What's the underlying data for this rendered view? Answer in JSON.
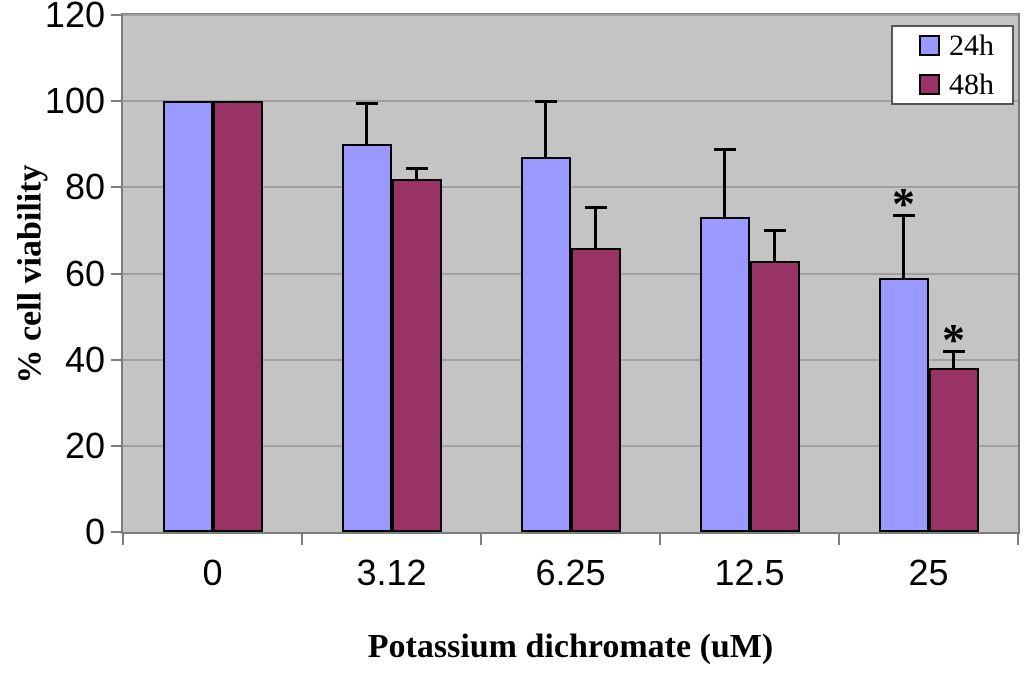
{
  "chart_data": {
    "type": "bar",
    "title": "",
    "xlabel": "Potassium dichromate (uM)",
    "ylabel": "% cell viability",
    "categories": [
      "0",
      "3.12",
      "6.25",
      "12.5",
      "25"
    ],
    "series": [
      {
        "name": "24h",
        "color": "#9999FF",
        "values": [
          100,
          90,
          87,
          73,
          59
        ],
        "errors_up": [
          0,
          9.5,
          13,
          16,
          14.5
        ],
        "significant": [
          false,
          false,
          false,
          false,
          true
        ]
      },
      {
        "name": "48h",
        "color": "#993366",
        "values": [
          100,
          82,
          66,
          63,
          38
        ],
        "errors_up": [
          0,
          2.5,
          9.5,
          7,
          4
        ],
        "significant": [
          false,
          false,
          false,
          false,
          true
        ]
      }
    ],
    "ylim": [
      0,
      120
    ],
    "yticks": [
      0,
      20,
      40,
      60,
      80,
      100,
      120
    ],
    "grid": "horizontal",
    "legend_position": "top-right",
    "legend_labels": [
      "24h",
      "48h"
    ],
    "significance_marker": "*",
    "colors": {
      "plot_bg": "#C4C4C4",
      "gridline": "#A0A0A0",
      "bar_border": "#000000",
      "error_bar": "#000000",
      "axis": "#7D7D7D",
      "baseline": "#141414",
      "legend_border": "#565656",
      "legend_bg": "#FFFFFF",
      "background": "#FFFFFF",
      "text": "#000000"
    }
  }
}
